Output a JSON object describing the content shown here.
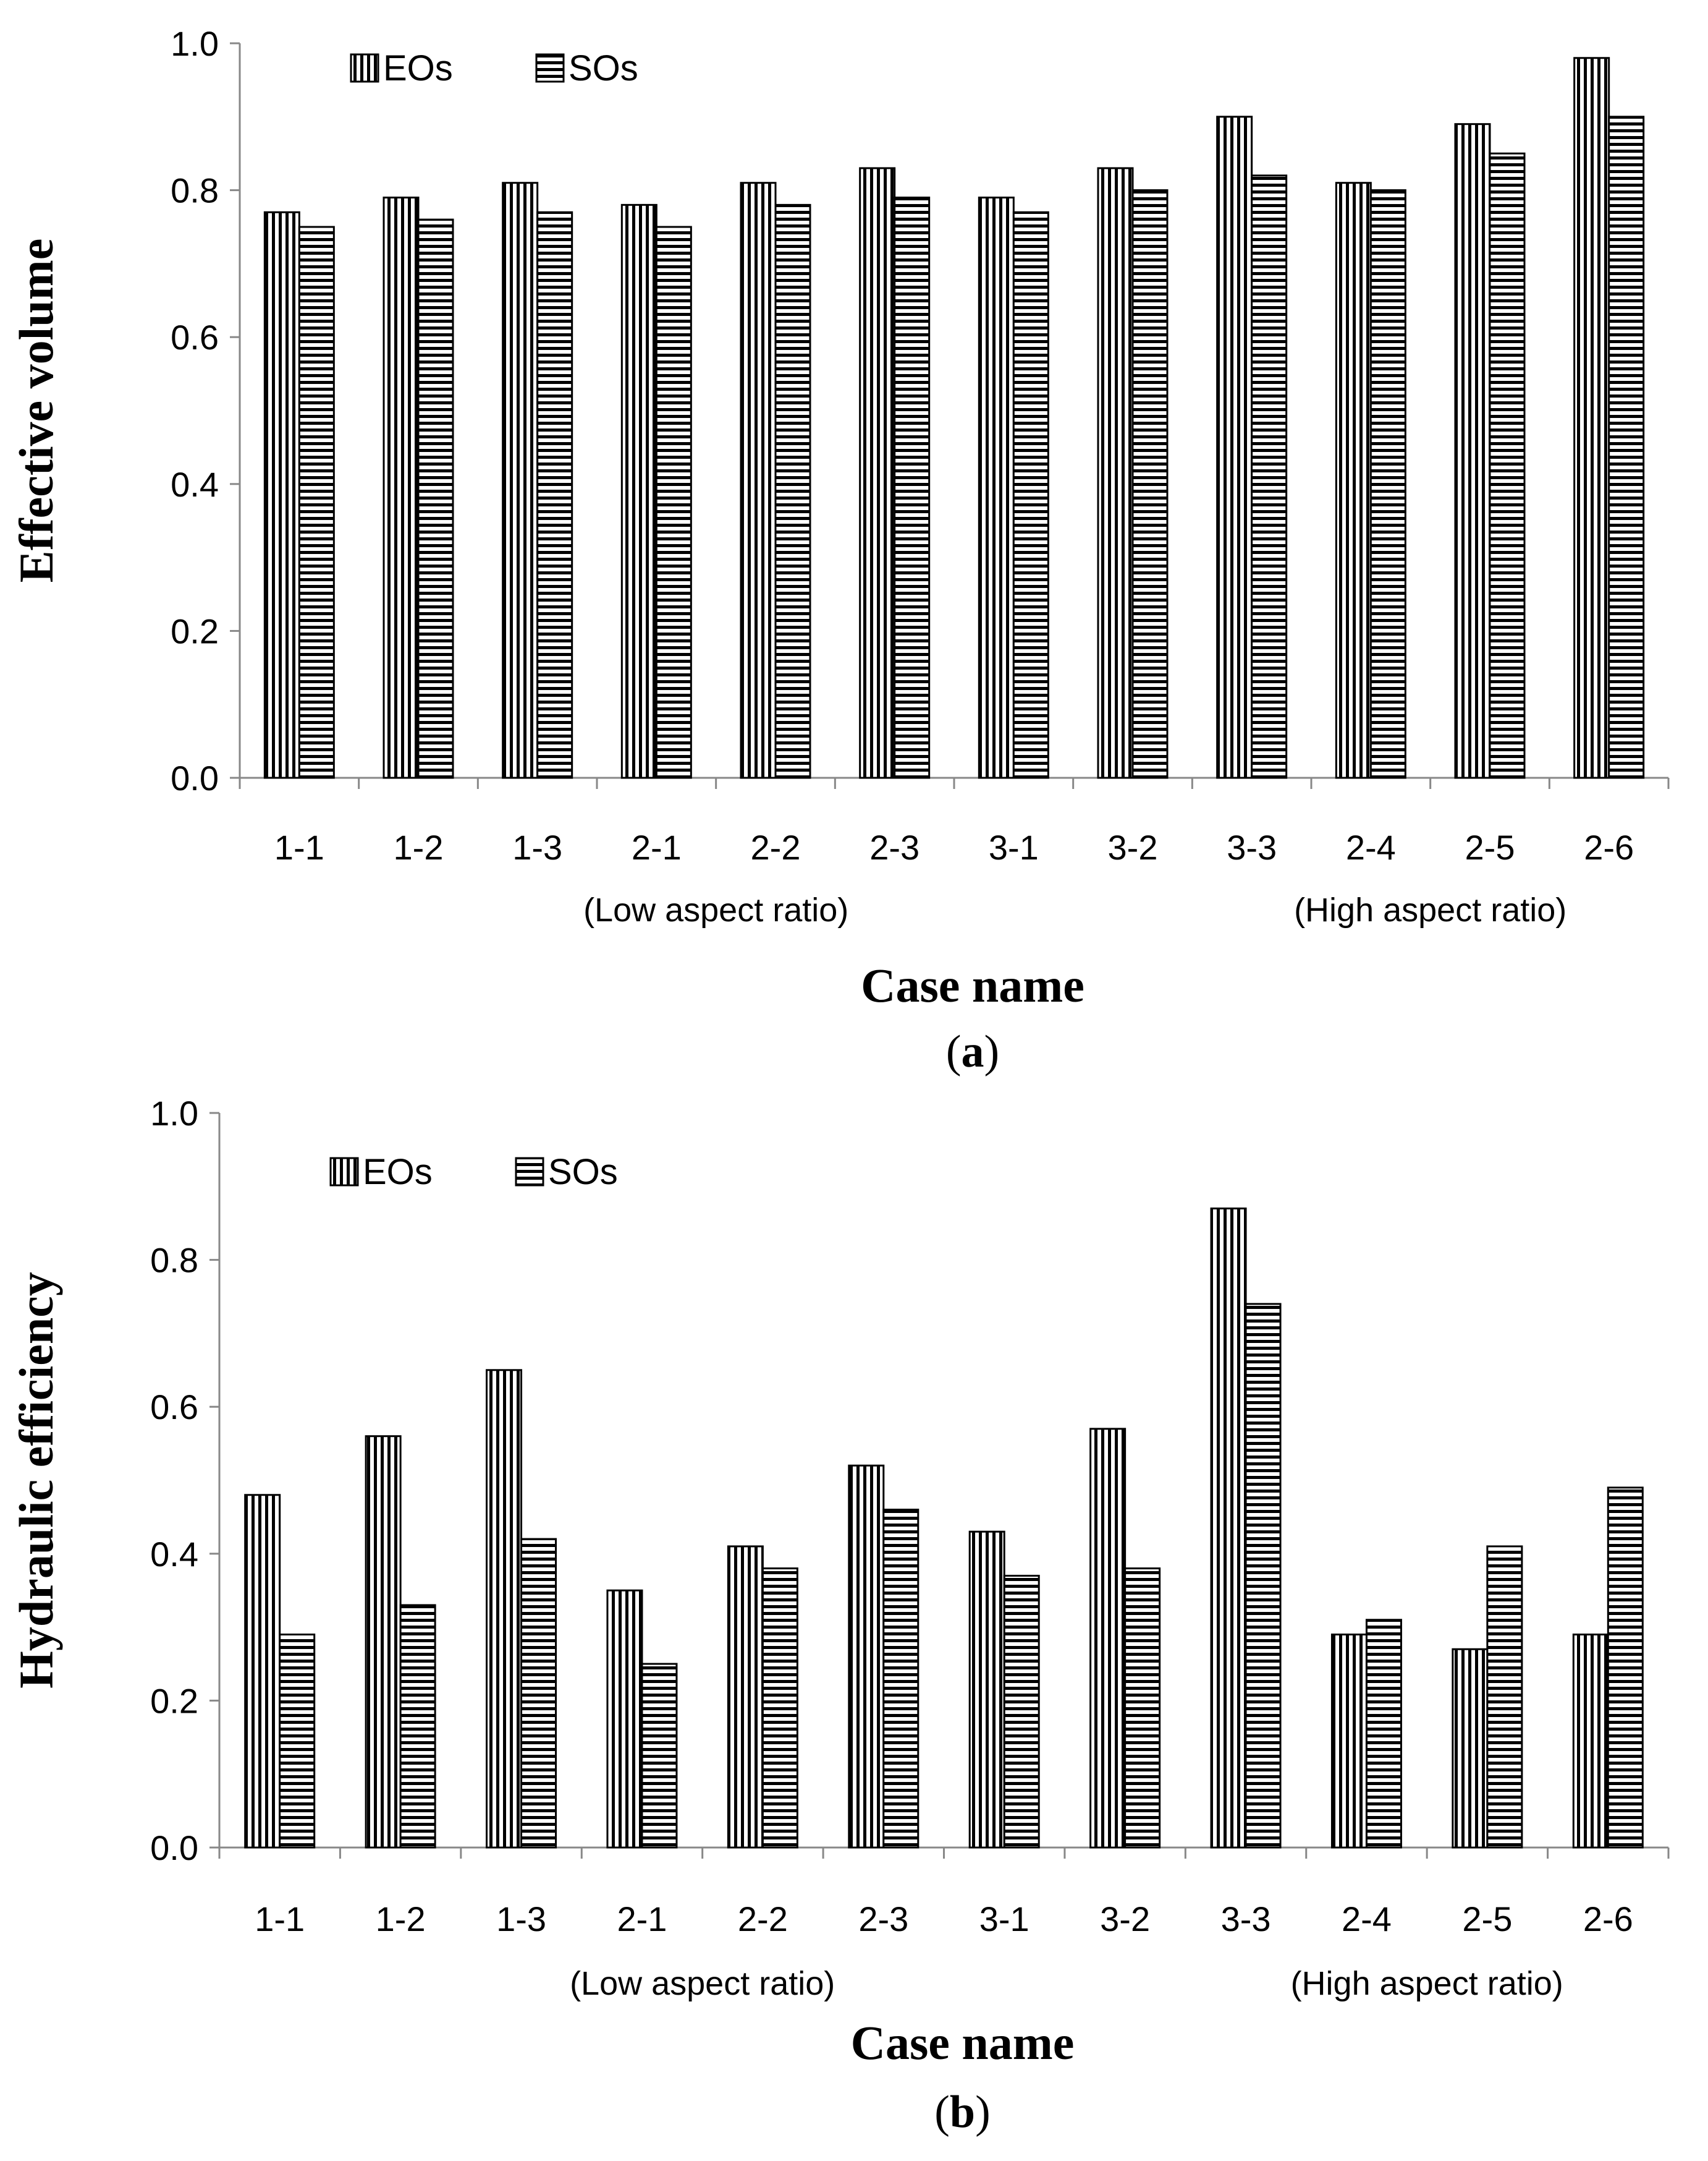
{
  "colors": {
    "bar_outline": "#000000",
    "bar_fill": "#ffffff",
    "hatch": "#000000",
    "axis": "#888888",
    "text": "#000000"
  },
  "chart_data": [
    {
      "type": "bar",
      "panel_label": "a",
      "title": "",
      "xlabel": "Case name",
      "ylabel": "Effective volume",
      "ylim": [
        0,
        1.0
      ],
      "yticks": [
        "0.0",
        "0.2",
        "0.4",
        "0.6",
        "0.8",
        "1.0"
      ],
      "categories": [
        "1-1",
        "1-2",
        "1-3",
        "2-1",
        "2-2",
        "2-3",
        "3-1",
        "3-2",
        "3-3",
        "2-4",
        "2-5",
        "2-6"
      ],
      "group_notes": [
        {
          "text": "(Low aspect ratio)",
          "category_index": 4
        },
        {
          "text": "(High aspect ratio)",
          "category_index": 10
        }
      ],
      "legend_position": "top-left",
      "grid": false,
      "series": [
        {
          "name": "EOs",
          "hatch": "vertical",
          "values": [
            0.77,
            0.79,
            0.81,
            0.78,
            0.81,
            0.83,
            0.79,
            0.83,
            0.9,
            0.81,
            0.89,
            0.98
          ]
        },
        {
          "name": "SOs",
          "hatch": "horizontal",
          "values": [
            0.75,
            0.76,
            0.77,
            0.75,
            0.78,
            0.79,
            0.77,
            0.8,
            0.82,
            0.8,
            0.85,
            0.9
          ]
        }
      ]
    },
    {
      "type": "bar",
      "panel_label": "b",
      "title": "",
      "xlabel": "Case name",
      "ylabel": "Hydraulic efficiency",
      "ylim": [
        0,
        1.0
      ],
      "yticks": [
        "0.0",
        "0.2",
        "0.4",
        "0.6",
        "0.8",
        "1.0"
      ],
      "categories": [
        "1-1",
        "1-2",
        "1-3",
        "2-1",
        "2-2",
        "2-3",
        "3-1",
        "3-2",
        "3-3",
        "2-4",
        "2-5",
        "2-6"
      ],
      "group_notes": [
        {
          "text": "(Low aspect ratio)",
          "category_index": 4
        },
        {
          "text": "(High aspect ratio)",
          "category_index": 10
        }
      ],
      "legend_position": "top-left",
      "grid": false,
      "series": [
        {
          "name": "EOs",
          "hatch": "vertical",
          "values": [
            0.48,
            0.56,
            0.65,
            0.35,
            0.41,
            0.52,
            0.43,
            0.57,
            0.87,
            0.29,
            0.27,
            0.29
          ]
        },
        {
          "name": "SOs",
          "hatch": "horizontal",
          "values": [
            0.29,
            0.33,
            0.42,
            0.25,
            0.38,
            0.46,
            0.37,
            0.38,
            0.74,
            0.31,
            0.41,
            0.49
          ]
        }
      ]
    }
  ]
}
